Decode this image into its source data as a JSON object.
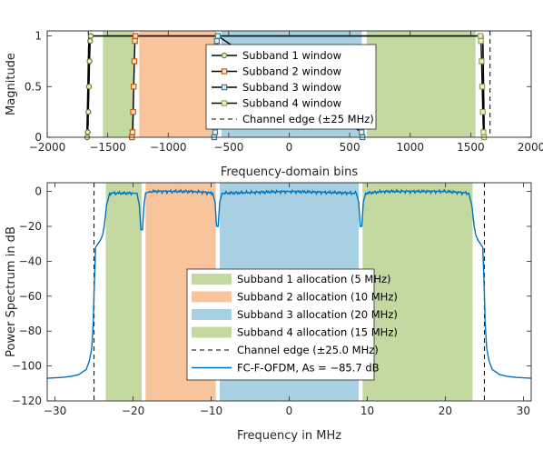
{
  "chart_data": [
    {
      "type": "line",
      "xlabel": "Frequency-domain bins",
      "ylabel": "Magnitude",
      "xlim": [
        -2000,
        2000
      ],
      "ylim": [
        0,
        1.05
      ],
      "xticks": [
        -2000,
        -1500,
        -1000,
        -500,
        0,
        500,
        1000,
        1500,
        2000
      ],
      "xtick_labels": [
        "−2000",
        "−1500",
        "−1000",
        "−500",
        "0",
        "500",
        "1000",
        "1500",
        "2000"
      ],
      "yticks": [
        0,
        0.5,
        1
      ],
      "ytick_labels": [
        "0",
        "0.5",
        "1"
      ],
      "grid": false,
      "legend_position": "top-center",
      "shaded_regions": [
        {
          "x": [
            -1540,
            -1280
          ],
          "color": "#c4d9a0"
        },
        {
          "x": [
            -1240,
            -600
          ],
          "color": "#f8c49c"
        },
        {
          "x": [
            -560,
            600
          ],
          "color": "#a7d1e2"
        },
        {
          "x": [
            640,
            1540
          ],
          "color": "#c4d9a0"
        }
      ],
      "series": [
        {
          "name": "Subband 1 window",
          "color": "#5b7f2a",
          "marker": "circle",
          "x": [
            -1670,
            -1665,
            -1660,
            -1655,
            -1650,
            -1645,
            -1640
          ],
          "y": [
            0,
            0.05,
            0.25,
            0.5,
            0.75,
            0.95,
            1
          ]
        },
        {
          "name": "Subband 2 window",
          "color": "#d45500",
          "marker": "square",
          "x": [
            -1300,
            -1295,
            -1290,
            -1285,
            -1280,
            -1275,
            -1270
          ],
          "y": [
            0,
            0.05,
            0.25,
            0.5,
            0.75,
            0.95,
            1
          ]
        },
        {
          "name": "Subband 3 window",
          "color": "#2a82b5",
          "marker": "square",
          "x": [
            -620,
            -612,
            -605,
            -598,
            -590,
            598,
            605
          ],
          "y": [
            0,
            0.05,
            0.5,
            0.95,
            1,
            0.05,
            0
          ]
        },
        {
          "name": "Subband 4 window",
          "color": "#8aa858",
          "marker": "square",
          "x": [
            1580,
            1585,
            1590,
            1595,
            1600,
            1605,
            1610
          ],
          "y": [
            1,
            0.95,
            0.75,
            0.5,
            0.25,
            0.05,
            0
          ]
        }
      ],
      "channel_edge": [
        -1660,
        1660
      ],
      "legend": [
        "Subband 1 window",
        "Subband 2 window",
        "Subband 3 window",
        "Subband 4 window",
        "Channel edge (±25 MHz)"
      ]
    },
    {
      "type": "line",
      "xlabel": "Frequency in MHz",
      "ylabel": "Power Spectrum in dB",
      "xlim": [
        -31,
        31
      ],
      "ylim": [
        -120,
        5
      ],
      "xticks": [
        -30,
        -20,
        -10,
        0,
        10,
        20,
        30
      ],
      "xtick_labels": [
        "−30",
        "−20",
        "−10",
        "0",
        "10",
        "20",
        "30"
      ],
      "yticks": [
        0,
        -20,
        -40,
        -60,
        -80,
        -100,
        -120
      ],
      "ytick_labels": [
        "0",
        "−20",
        "−40",
        "−60",
        "−80",
        "−100",
        "−120"
      ],
      "grid": false,
      "legend_position": "bottom-center",
      "allocations": [
        {
          "name": "Subband 1 allocation (5 MHz)",
          "x": [
            -23.5,
            -18.9
          ],
          "color": "#c4d9a0"
        },
        {
          "name": "Subband 2 allocation (10 MHz)",
          "x": [
            -18.4,
            -9.4
          ],
          "color": "#f8c49c"
        },
        {
          "name": "Subband 3 allocation (20 MHz)",
          "x": [
            -8.9,
            8.9
          ],
          "color": "#a7d1e2"
        },
        {
          "name": "Subband 4 allocation (15 MHz)",
          "x": [
            9.4,
            23.5
          ],
          "color": "#c4d9a0"
        }
      ],
      "channel_edge": [
        -25,
        25
      ],
      "channel_edge_label": "Channel edge (±25.0 MHz)",
      "series": [
        {
          "name": "FC-F-OFDM, As = −85.7 dB",
          "color": "#0072bd",
          "x": [
            -31,
            -29,
            -28,
            -27,
            -26,
            -25.6,
            -25.3,
            -25.1,
            -25,
            -24.8,
            -24.5,
            -24.2,
            -23.9,
            -23.7,
            -23.4,
            -23,
            -20,
            -19.5,
            -19.2,
            -19,
            -18.8,
            -18.6,
            -18.4,
            -17.8,
            -12,
            -9.8,
            -9.5,
            -9.3,
            -9.1,
            -8.9,
            -8.6,
            0,
            8.6,
            8.9,
            9.1,
            9.3,
            9.5,
            9.8,
            12,
            20,
            23,
            23.4,
            23.7,
            23.9,
            24.2,
            24.5,
            24.8,
            25,
            25.1,
            25.3,
            25.6,
            26,
            27,
            28,
            29,
            31
          ],
          "y": [
            -107,
            -106.5,
            -106,
            -105,
            -102,
            -97,
            -90,
            -75,
            -58,
            -32,
            -30,
            -28,
            -25,
            -20,
            -8,
            -1,
            -1,
            -1,
            -8,
            -22,
            -22,
            -8,
            -1,
            0,
            0,
            -1,
            -6,
            -20,
            -20,
            -6,
            -1,
            0,
            -1,
            -6,
            -20,
            -20,
            -6,
            -1,
            0,
            0,
            -1,
            -8,
            -20,
            -25,
            -28,
            -30,
            -32,
            -58,
            -75,
            -90,
            -97,
            -102,
            -105,
            -106,
            -106.5,
            -107
          ]
        }
      ],
      "legend": [
        "Subband 1 allocation (5 MHz)",
        "Subband 2 allocation (10 MHz)",
        "Subband 3 allocation (20 MHz)",
        "Subband 4 allocation (15 MHz)",
        "Channel edge (±25.0 MHz)",
        "FC-F-OFDM, As = −85.7 dB"
      ]
    }
  ]
}
